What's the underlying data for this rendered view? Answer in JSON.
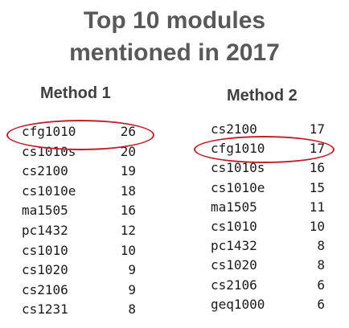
{
  "title": {
    "line1": "Top 10 modules",
    "line2": "mentioned in 2017"
  },
  "method1": {
    "heading": "Method 1",
    "rows": [
      {
        "module": "cfg1010",
        "count": "26",
        "highlighted": true
      },
      {
        "module": "cs1010s",
        "count": "20"
      },
      {
        "module": "cs2100",
        "count": "19"
      },
      {
        "module": "cs1010e",
        "count": "18"
      },
      {
        "module": "ma1505",
        "count": "16"
      },
      {
        "module": "pc1432",
        "count": "12"
      },
      {
        "module": "cs1010",
        "count": "10"
      },
      {
        "module": "cs1020",
        "count": "9"
      },
      {
        "module": "cs2106",
        "count": "9"
      },
      {
        "module": "cs1231",
        "count": "8"
      }
    ]
  },
  "method2": {
    "heading": "Method 2",
    "rows": [
      {
        "module": "cs2100",
        "count": "17"
      },
      {
        "module": "cfg1010",
        "count": "17",
        "highlighted": true
      },
      {
        "module": "cs1010s",
        "count": "16"
      },
      {
        "module": "cs1010e",
        "count": "15"
      },
      {
        "module": "ma1505",
        "count": "11"
      },
      {
        "module": "cs1010",
        "count": "10"
      },
      {
        "module": "pc1432",
        "count": "8"
      },
      {
        "module": "cs1020",
        "count": "8"
      },
      {
        "module": "cs2106",
        "count": "6"
      },
      {
        "module": "geq1000",
        "count": "6"
      }
    ]
  },
  "colors": {
    "title": "#595959",
    "heading": "#404040",
    "text": "#1a1a1a",
    "highlight": "#c0202e"
  }
}
